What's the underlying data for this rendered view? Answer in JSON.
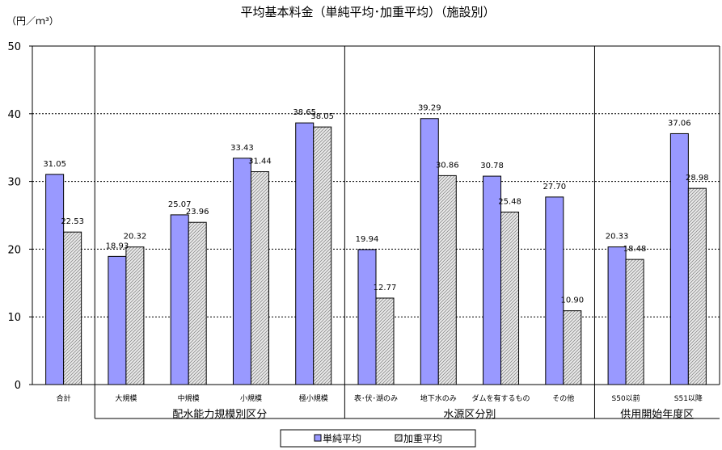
{
  "chart_data": {
    "type": "bar",
    "title": "平均基本料金（単純平均･加重平均）（施設別）",
    "unit_label": "（円／ｍ³）",
    "ylim": [
      0,
      50
    ],
    "yticks": [
      0,
      10,
      20,
      30,
      40,
      50
    ],
    "grid": true,
    "legend_position": "bottom",
    "categories": [
      "合計",
      "大規模",
      "中規模",
      "小規模",
      "極小規模",
      "表･伏･湖のみ",
      "地下水のみ",
      "ダムを有するもの",
      "その他",
      "S50以前",
      "S51以降"
    ],
    "groups": [
      {
        "label": "配水能力規模別区分",
        "from": 1,
        "to": 4
      },
      {
        "label": "水源区分別",
        "from": 5,
        "to": 8
      },
      {
        "label": "供用開始年度区",
        "from": 9,
        "to": 10
      }
    ],
    "series": [
      {
        "name": "単純平均",
        "color": "#9999ff",
        "values": [
          31.05,
          18.93,
          25.07,
          33.43,
          38.65,
          19.94,
          39.29,
          30.78,
          27.7,
          20.33,
          37.06
        ],
        "labels": [
          "31.05",
          "18.93",
          "25.07",
          "33.43",
          "38.65",
          "19.94",
          "39.29",
          "30.78",
          "27.70",
          "20.33",
          "37.06"
        ]
      },
      {
        "name": "加重平均",
        "color": "#d4d4d4",
        "values": [
          22.53,
          20.32,
          23.96,
          31.44,
          38.05,
          12.77,
          30.86,
          25.48,
          10.9,
          18.48,
          28.98
        ],
        "labels": [
          "22.53",
          "20.32",
          "23.96",
          "31.44",
          "38.05",
          "12.77",
          "30.86",
          "25.48",
          "10.90",
          "18.48",
          "28.98"
        ]
      }
    ]
  }
}
